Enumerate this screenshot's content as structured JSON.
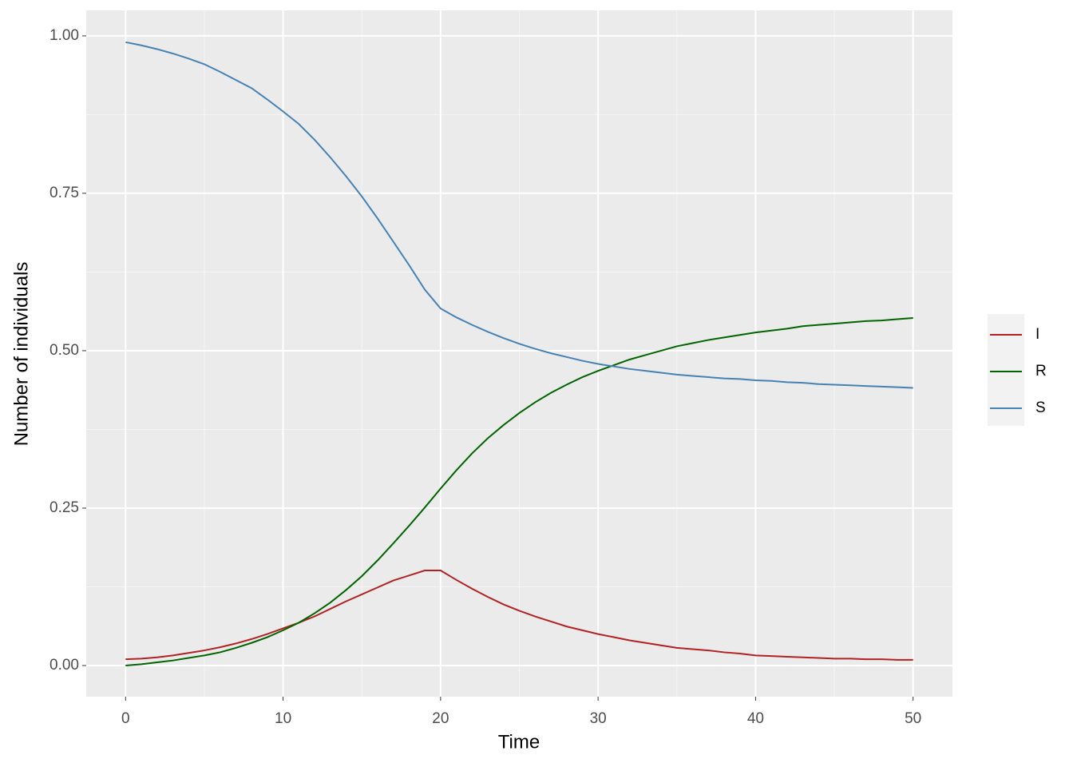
{
  "chart_data": {
    "type": "line",
    "x_label": "Time",
    "y_label": "Number of individuals",
    "x": [
      0,
      1,
      2,
      3,
      4,
      5,
      6,
      7,
      8,
      9,
      10,
      11,
      12,
      13,
      14,
      15,
      16,
      17,
      18,
      19,
      20,
      21,
      22,
      23,
      24,
      25,
      26,
      27,
      28,
      29,
      30,
      31,
      32,
      33,
      34,
      35,
      36,
      37,
      38,
      39,
      40,
      41,
      42,
      43,
      44,
      45,
      46,
      47,
      48,
      49,
      50
    ],
    "series": [
      {
        "name": "I",
        "color": "#b22222",
        "values": [
          0.01,
          0.011,
          0.013,
          0.016,
          0.02,
          0.024,
          0.029,
          0.035,
          0.042,
          0.05,
          0.059,
          0.068,
          0.078,
          0.09,
          0.102,
          0.113,
          0.124,
          0.135,
          0.143,
          0.151,
          0.151,
          0.136,
          0.122,
          0.109,
          0.097,
          0.087,
          0.078,
          0.07,
          0.062,
          0.056,
          0.05,
          0.045,
          0.04,
          0.036,
          0.032,
          0.028,
          0.026,
          0.024,
          0.021,
          0.019,
          0.016,
          0.015,
          0.014,
          0.013,
          0.012,
          0.011,
          0.011,
          0.01,
          0.01,
          0.009,
          0.009
        ]
      },
      {
        "name": "R",
        "color": "#006400",
        "values": [
          0,
          0.002,
          0.005,
          0.008,
          0.012,
          0.016,
          0.021,
          0.028,
          0.036,
          0.045,
          0.056,
          0.068,
          0.083,
          0.1,
          0.12,
          0.142,
          0.167,
          0.194,
          0.222,
          0.251,
          0.281,
          0.31,
          0.337,
          0.361,
          0.382,
          0.401,
          0.418,
          0.433,
          0.446,
          0.458,
          0.468,
          0.477,
          0.486,
          0.493,
          0.5,
          0.507,
          0.512,
          0.517,
          0.521,
          0.525,
          0.529,
          0.532,
          0.535,
          0.539,
          0.541,
          0.543,
          0.545,
          0.547,
          0.548,
          0.55,
          0.552
        ]
      },
      {
        "name": "S",
        "color": "#4682b4",
        "values": [
          0.99,
          0.985,
          0.979,
          0.972,
          0.964,
          0.955,
          0.943,
          0.93,
          0.917,
          0.899,
          0.88,
          0.86,
          0.835,
          0.807,
          0.777,
          0.745,
          0.71,
          0.673,
          0.636,
          0.597,
          0.567,
          0.553,
          0.541,
          0.53,
          0.52,
          0.511,
          0.503,
          0.496,
          0.49,
          0.484,
          0.479,
          0.475,
          0.471,
          0.468,
          0.465,
          0.462,
          0.46,
          0.458,
          0.456,
          0.455,
          0.453,
          0.452,
          0.45,
          0.449,
          0.447,
          0.446,
          0.445,
          0.444,
          0.443,
          0.442,
          0.441
        ]
      }
    ],
    "xlim": [
      -2.5,
      52.5
    ],
    "xticks": [
      0,
      10,
      20,
      30,
      40,
      50
    ],
    "xminor": [
      5,
      15,
      25,
      35,
      45
    ],
    "ylim": [
      -0.0495,
      1.0405
    ],
    "yticks": [
      {
        "value": 0,
        "label": "0.00"
      },
      {
        "value": 0.25,
        "label": "0.25"
      },
      {
        "value": 0.5,
        "label": "0.50"
      },
      {
        "value": 0.75,
        "label": "0.75"
      },
      {
        "value": 1,
        "label": "1.00"
      }
    ],
    "yminor": [
      0.125,
      0.375,
      0.625,
      0.875
    ],
    "grid": true,
    "legend": "right"
  }
}
